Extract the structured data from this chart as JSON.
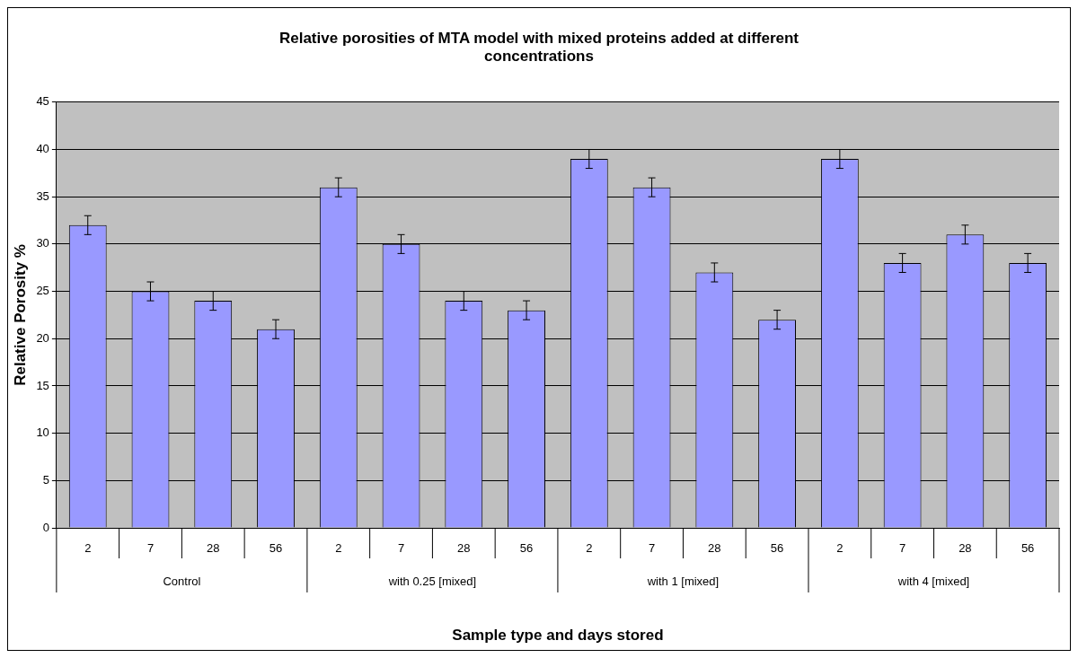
{
  "chart_data": {
    "type": "bar",
    "title": "Relative porosities of MTA model with mixed proteins added at different concentrations",
    "xlabel": "Sample type and days stored",
    "ylabel": "Relative Porosity %",
    "categories": [
      "2",
      "7",
      "28",
      "56",
      "2",
      "7",
      "28",
      "56",
      "2",
      "7",
      "28",
      "56",
      "2",
      "7",
      "28",
      "56"
    ],
    "values": [
      32,
      25,
      24,
      21,
      36,
      30,
      24,
      23,
      39,
      36,
      27,
      22,
      39,
      28,
      31,
      28
    ],
    "errors": [
      1,
      1,
      1,
      1,
      1,
      1,
      1,
      1,
      1,
      1,
      1,
      1,
      1,
      1,
      1,
      1
    ],
    "color": "#9999ff",
    "annotations": [
      "Control",
      "with 0.25 [mixed]",
      "with 1 [mixed]",
      "with 4 [mixed]"
    ],
    "ylim": [
      0,
      45
    ],
    "yticks": [
      0,
      5,
      10,
      15,
      20,
      25,
      30,
      35,
      40,
      45
    ],
    "grid": "y",
    "legend": false
  }
}
